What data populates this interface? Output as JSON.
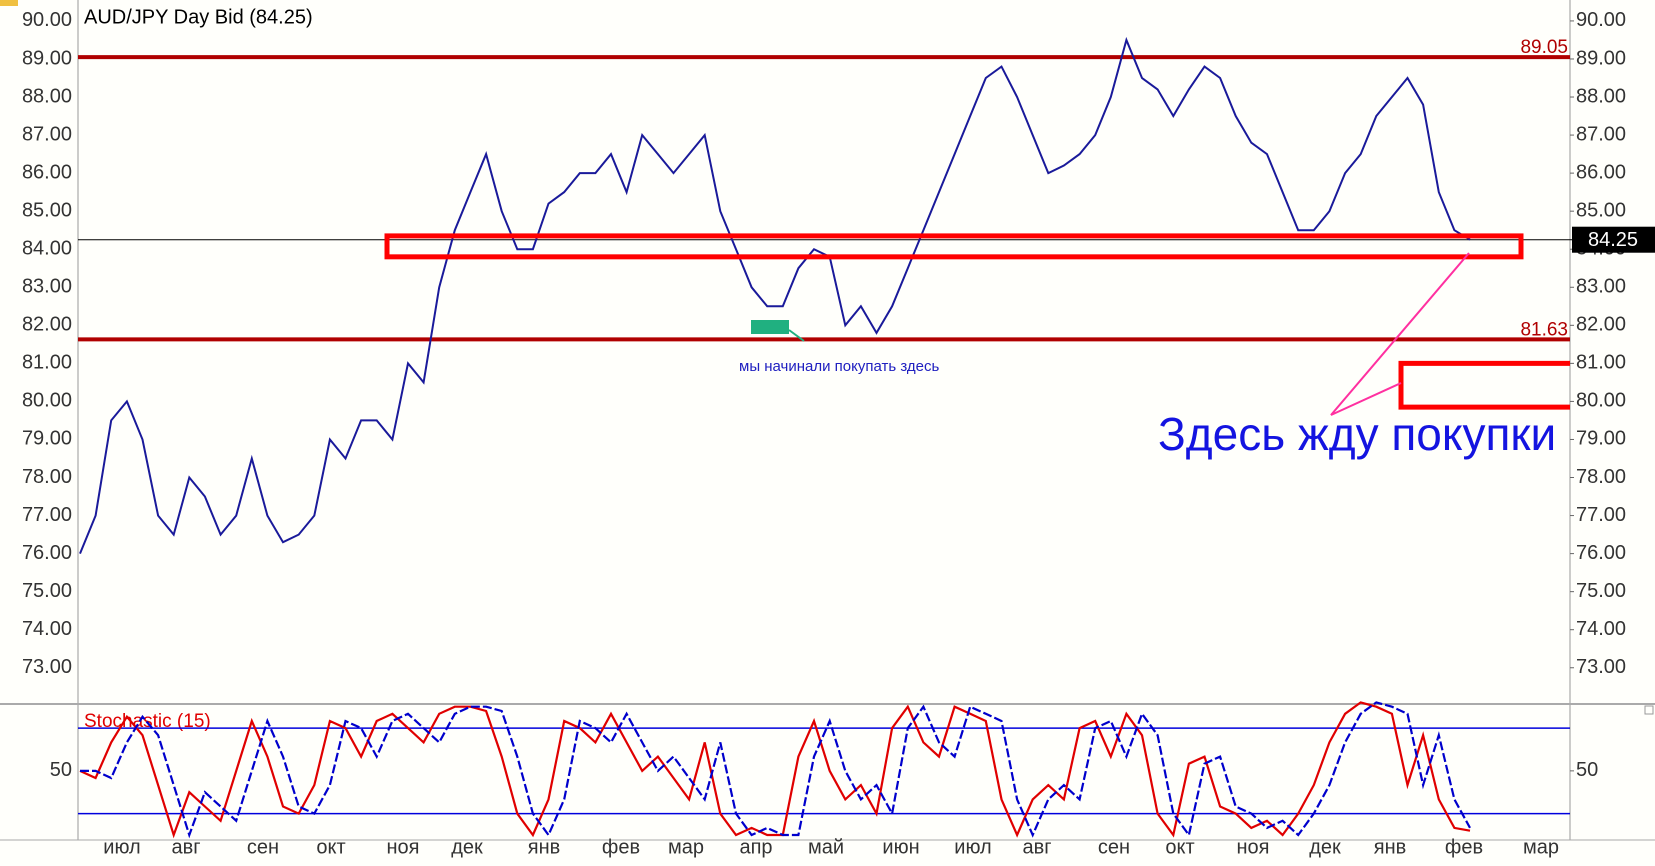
{
  "chart_data": [
    {
      "type": "line",
      "title": "AUD/JPY Day Bid (84.25)",
      "x_labels": [
        "июл",
        "авг",
        "сен",
        "окт",
        "ноя",
        "дек",
        "янв",
        "фев",
        "мар",
        "апр",
        "май",
        "июн",
        "июл",
        "авг",
        "сен",
        "окт",
        "ноя",
        "дек",
        "янв",
        "фев",
        "мар"
      ],
      "series": [
        {
          "color": "#1a1a9a",
          "values": [
            76,
            77,
            79.5,
            80,
            79,
            77,
            76.5,
            78,
            77.5,
            76.5,
            77,
            78.5,
            77,
            76.3,
            76.5,
            77,
            79,
            78.5,
            79.5,
            79.5,
            79,
            81,
            80.5,
            83,
            84.5,
            85.5,
            86.5,
            85,
            84,
            84,
            85.2,
            85.5,
            86,
            86,
            86.5,
            85.5,
            87,
            86.5,
            86,
            86.5,
            87,
            85,
            84,
            83,
            82.5,
            82.5,
            83.5,
            84,
            83.8,
            82,
            82.5,
            81.8,
            82.5,
            83.5,
            84.5,
            85.5,
            86.5,
            87.5,
            88.5,
            88.8,
            88,
            87,
            86,
            86.2,
            86.5,
            87,
            88,
            89.5,
            88.5,
            88.2,
            87.5,
            88.2,
            88.8,
            88.5,
            87.5,
            86.8,
            86.5,
            85.5,
            84.5,
            84.5,
            85,
            86,
            86.5,
            87.5,
            88,
            88.5,
            87.8,
            85.5,
            84.5,
            84.25
          ]
        }
      ],
      "ylim": [
        72.1,
        90.55
      ],
      "yticks": [
        {
          "value": 73,
          "label": "73.00"
        },
        {
          "value": 74,
          "label": "74.00"
        },
        {
          "value": 75,
          "label": "75.00"
        },
        {
          "value": 76,
          "label": "76.00"
        },
        {
          "value": 77,
          "label": "77.00"
        },
        {
          "value": 78,
          "label": "78.00"
        },
        {
          "value": 79,
          "label": "79.00"
        },
        {
          "value": 80,
          "label": "80.00"
        },
        {
          "value": 81,
          "label": "81.00"
        },
        {
          "value": 82,
          "label": "82.00"
        },
        {
          "value": 83,
          "label": "83.00"
        },
        {
          "value": 84,
          "label": "84.00"
        },
        {
          "value": 85,
          "label": "85.00"
        },
        {
          "value": 86,
          "label": "86.00"
        },
        {
          "value": 87,
          "label": "87.00"
        },
        {
          "value": 88,
          "label": "88.00"
        },
        {
          "value": 89,
          "label": "89.00"
        },
        {
          "value": 90,
          "label": "90.00"
        }
      ],
      "levels": [
        {
          "value": 89.05,
          "color": "#b00000"
        },
        {
          "value": 81.63,
          "color": "#b00000"
        }
      ],
      "last": 84.25,
      "zones": [
        [
          83.8,
          84.35
        ],
        [
          79.85,
          81.0
        ]
      ],
      "zone_color": "#ff0000",
      "annotations": [
        "мы начинали покупать здесь",
        "Здесь жду покупки"
      ]
    },
    {
      "type": "line",
      "title": "Stochastic (15)",
      "series": [
        {
          "color": "#e00000",
          "values": [
            50,
            45,
            70,
            88,
            75,
            40,
            5,
            35,
            25,
            15,
            50,
            85,
            60,
            25,
            20,
            40,
            85,
            80,
            60,
            85,
            90,
            80,
            70,
            90,
            95,
            95,
            92,
            60,
            20,
            5,
            30,
            85,
            80,
            70,
            90,
            70,
            50,
            60,
            45,
            30,
            70,
            20,
            5,
            10,
            5,
            5,
            60,
            85,
            50,
            30,
            40,
            20,
            80,
            95,
            70,
            60,
            95,
            90,
            85,
            30,
            5,
            30,
            40,
            30,
            80,
            85,
            60,
            90,
            75,
            20,
            5,
            55,
            60,
            25,
            20,
            10,
            15,
            5,
            20,
            40,
            70,
            90,
            98,
            95,
            90,
            40,
            75,
            30,
            10,
            8
          ]
        },
        {
          "color": "#0000cc",
          "values": [
            50,
            50,
            45,
            70,
            88,
            75,
            40,
            5,
            35,
            25,
            15,
            50,
            85,
            60,
            25,
            20,
            40,
            85,
            80,
            60,
            85,
            90,
            80,
            70,
            90,
            95,
            95,
            92,
            60,
            20,
            5,
            30,
            85,
            80,
            70,
            90,
            70,
            50,
            60,
            45,
            30,
            70,
            20,
            5,
            10,
            5,
            5,
            60,
            85,
            50,
            30,
            40,
            20,
            80,
            95,
            70,
            60,
            95,
            90,
            85,
            30,
            5,
            30,
            40,
            30,
            80,
            85,
            60,
            90,
            75,
            20,
            5,
            55,
            60,
            25,
            20,
            10,
            15,
            5,
            20,
            40,
            70,
            90,
            98,
            95,
            90,
            40,
            75,
            30,
            10
          ]
        }
      ],
      "ylim": [
        2.2,
        94.8
      ],
      "yticks": [
        50
      ],
      "levels": [
        20,
        80
      ],
      "level_color": "#0000dd"
    }
  ]
}
